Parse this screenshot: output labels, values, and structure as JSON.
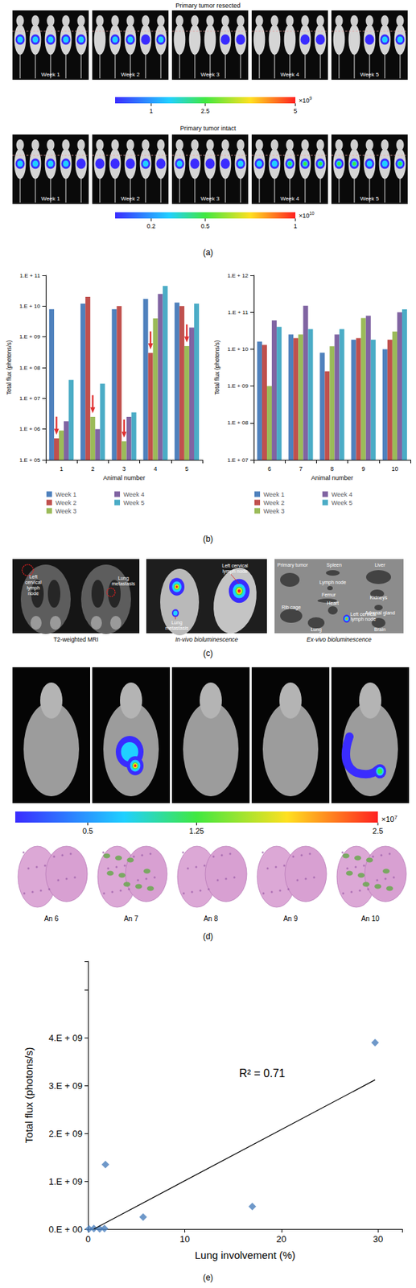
{
  "panel_labels": [
    "(a)",
    "(b)",
    "(c)",
    "(d)",
    "(e)"
  ],
  "panel_a": {
    "rows": [
      {
        "title": "Primary tumor resected",
        "weeks": [
          "Week 1",
          "Week 2",
          "Week 3",
          "Week 4",
          "Week 5"
        ],
        "colorbar": {
          "range": [
            0,
            5
          ],
          "ticks": [
            1,
            2.5,
            5
          ],
          "multiplier": "×10",
          "exponent": "9"
        }
      },
      {
        "title": "Primary tumor intact",
        "weeks": [
          "Week 1",
          "Week 2",
          "Week 3",
          "Week 4",
          "Week 5"
        ],
        "colorbar": {
          "range": [
            0,
            1
          ],
          "ticks": [
            0.2,
            0.5,
            1
          ],
          "multiplier": "×10",
          "exponent": "10"
        }
      }
    ]
  },
  "panel_c": {
    "captions": [
      "T2-weighted MRI",
      "In-vivo bioluminescence",
      "Ex-vivo bioluminescence"
    ],
    "mri_labels": [
      "Left cervical lymph node",
      "Lung metastasis"
    ],
    "in_vivo_labels": [
      "Left cervical lymph node",
      "Lung metastasis"
    ],
    "ex_vivo_labels": [
      "Primary tumor",
      "Spleen",
      "Liver",
      "Lymph node",
      "Femur",
      "Kidneys",
      "Heart",
      "Rib cage",
      "Adrenal gland",
      "Lung",
      "Left cervical lymph node",
      "Brain"
    ]
  },
  "panel_d": {
    "colorbar": {
      "range": [
        0,
        2.5
      ],
      "ticks": [
        0.5,
        1.25,
        2.5
      ],
      "multiplier": "×10",
      "exponent": "7"
    },
    "animals": [
      "An 6",
      "An 7",
      "An 8",
      "An 9",
      "An 10"
    ]
  },
  "chart_data": [
    {
      "type": "bar",
      "log": "y",
      "grid": false,
      "legend": "bottom",
      "x_label": "Animal number",
      "y_label": "Total flux (photons/s)",
      "categories": [
        "1",
        "2",
        "3",
        "4",
        "5"
      ],
      "ylim": [
        100000,
        100000000000
      ],
      "yticks": [
        {
          "value": 100000,
          "label": "1.E + 05"
        },
        {
          "value": 1000000,
          "label": "1.E + 06"
        },
        {
          "value": 10000000,
          "label": "1.E + 07"
        },
        {
          "value": 100000000,
          "label": "1.E + 08"
        },
        {
          "value": 1000000000,
          "label": "1.E + 09"
        },
        {
          "value": 10000000000,
          "label": "1.E + 10"
        },
        {
          "value": 100000000000,
          "label": "1.E + 11"
        }
      ],
      "series": [
        {
          "name": "Week 1",
          "color": "#4f81bd",
          "values": [
            8000000000.0,
            12000000000.0,
            8000000000.0,
            17000000000.0,
            13000000000.0
          ]
        },
        {
          "name": "Week 2",
          "color": "#c0504d",
          "values": [
            500000.0,
            20000000000.0,
            10000000000.0,
            300000000.0,
            10000000000.0
          ]
        },
        {
          "name": "Week 3",
          "color": "#9bbb59",
          "values": [
            900000.0,
            2500000.0,
            400000.0,
            4000000000.0,
            500000000.0
          ]
        },
        {
          "name": "Week 4",
          "color": "#8064a2",
          "values": [
            1800000.0,
            1000000.0,
            2500000.0,
            25000000000.0,
            2000000000.0
          ]
        },
        {
          "name": "Week 5",
          "color": "#4bacc6",
          "values": [
            40000000.0,
            30000000.0,
            3500000.0,
            45000000000.0,
            12000000000.0
          ]
        }
      ],
      "arrows": [
        {
          "category": "1",
          "series": "Week 2"
        },
        {
          "category": "2",
          "series": "Week 3"
        },
        {
          "category": "3",
          "series": "Week 3"
        },
        {
          "category": "4",
          "series": "Week 2"
        },
        {
          "category": "5",
          "series": "Week 3"
        }
      ]
    },
    {
      "type": "bar",
      "log": "y",
      "grid": false,
      "legend": "bottom",
      "x_label": "Animal number",
      "y_label": "Total flux (photons/s)",
      "categories": [
        "6",
        "7",
        "8",
        "9",
        "10"
      ],
      "ylim": [
        10000000,
        1000000000000
      ],
      "yticks": [
        {
          "value": 10000000,
          "label": "1.E + 07"
        },
        {
          "value": 100000000,
          "label": "1.E + 08"
        },
        {
          "value": 1000000000,
          "label": "1.E + 09"
        },
        {
          "value": 10000000000,
          "label": "1.E + 10"
        },
        {
          "value": 100000000000,
          "label": "1.E + 11"
        },
        {
          "value": 1000000000000,
          "label": "1.E + 12"
        }
      ],
      "series": [
        {
          "name": "Week 1",
          "color": "#4f81bd",
          "values": [
            16000000000.0,
            25000000000.0,
            8000000000.0,
            18000000000.0,
            10000000000.0
          ]
        },
        {
          "name": "Week 2",
          "color": "#c0504d",
          "values": [
            13000000000.0,
            20000000000.0,
            2500000000.0,
            20000000000.0,
            18000000000.0
          ]
        },
        {
          "name": "Week 3",
          "color": "#9bbb59",
          "values": [
            1000000000.0,
            25000000000.0,
            12000000000.0,
            70000000000.0,
            30000000000.0
          ]
        },
        {
          "name": "Week 4",
          "color": "#8064a2",
          "values": [
            60000000000.0,
            150000000000.0,
            25000000000.0,
            80000000000.0,
            100000000000.0
          ]
        },
        {
          "name": "Week 5",
          "color": "#4bacc6",
          "values": [
            40000000000.0,
            35000000000.0,
            35000000000.0,
            18000000000.0,
            120000000000.0
          ]
        }
      ]
    },
    {
      "type": "scatter",
      "grid": false,
      "marker": "diamond",
      "color": "#4a7ebb",
      "x_label": "Lung involvement (%)",
      "y_label": "Total flux (photons/s)",
      "x": [
        0.1,
        0.6,
        1.2,
        1.7,
        1.8,
        5.7,
        17,
        29.7
      ],
      "values": [
        5000000.0,
        10000000.0,
        5000000.0,
        10000000.0,
        1350000000.0,
        250000000.0,
        470000000.0,
        3900000000.0
      ],
      "xlim": [
        0,
        32.5
      ],
      "xticks": [
        0,
        10,
        20,
        30
      ],
      "ylim": [
        0,
        5600000000
      ],
      "yticks": [
        {
          "value": 0,
          "label": "0.E + 00"
        },
        {
          "value": 1000000000,
          "label": "1.E + 09"
        },
        {
          "value": 2000000000,
          "label": "2.E + 09"
        },
        {
          "value": 3000000000,
          "label": "3.E + 09"
        },
        {
          "value": 4000000000,
          "label": "4.E + 09"
        }
      ],
      "trendline": {
        "x": [
          0.6,
          29.7
        ],
        "values": [
          0,
          3120000000
        ]
      },
      "annotation": "R² = 0.71"
    }
  ]
}
